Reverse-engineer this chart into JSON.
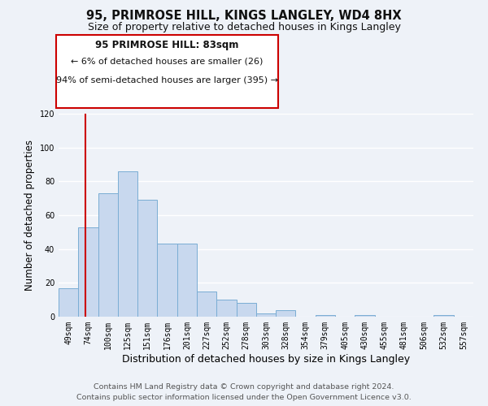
{
  "title": "95, PRIMROSE HILL, KINGS LANGLEY, WD4 8HX",
  "subtitle": "Size of property relative to detached houses in Kings Langley",
  "xlabel": "Distribution of detached houses by size in Kings Langley",
  "ylabel": "Number of detached properties",
  "bin_labels": [
    "49sqm",
    "74sqm",
    "100sqm",
    "125sqm",
    "151sqm",
    "176sqm",
    "201sqm",
    "227sqm",
    "252sqm",
    "278sqm",
    "303sqm",
    "328sqm",
    "354sqm",
    "379sqm",
    "405sqm",
    "430sqm",
    "455sqm",
    "481sqm",
    "506sqm",
    "532sqm",
    "557sqm"
  ],
  "bar_values": [
    17,
    53,
    73,
    86,
    69,
    43,
    43,
    15,
    10,
    8,
    2,
    4,
    0,
    1,
    0,
    1,
    0,
    0,
    0,
    1,
    0
  ],
  "bar_color": "#c8d8ee",
  "bar_edge_color": "#7aadd4",
  "ylim": [
    0,
    120
  ],
  "yticks": [
    0,
    20,
    40,
    60,
    80,
    100,
    120
  ],
  "annotation_title": "95 PRIMROSE HILL: 83sqm",
  "annotation_line1": "← 6% of detached houses are smaller (26)",
  "annotation_line2": "94% of semi-detached houses are larger (395) →",
  "annotation_box_color": "#ffffff",
  "annotation_border_color": "#cc0000",
  "red_line_color": "#cc0000",
  "footer_line1": "Contains HM Land Registry data © Crown copyright and database right 2024.",
  "footer_line2": "Contains public sector information licensed under the Open Government Licence v3.0.",
  "bg_color": "#eef2f8",
  "grid_color": "#ffffff",
  "title_fontsize": 10.5,
  "subtitle_fontsize": 9,
  "ylabel_fontsize": 8.5,
  "xlabel_fontsize": 9,
  "tick_fontsize": 7,
  "annotation_title_fontsize": 8.5,
  "annotation_text_fontsize": 8,
  "footer_fontsize": 6.8
}
